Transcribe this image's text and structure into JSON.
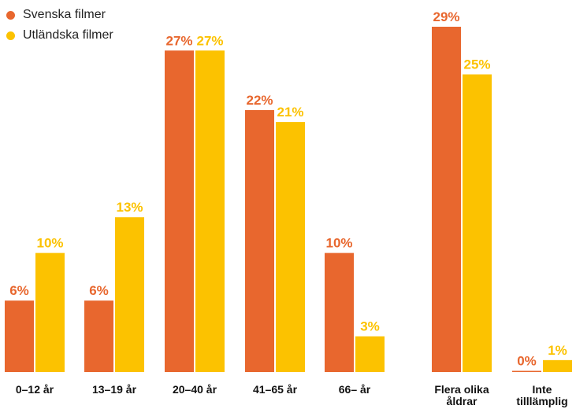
{
  "colors": {
    "svenska": "#E8672E",
    "utlandska": "#FCC200"
  },
  "legend": {
    "item0": "Svenska filmer",
    "item1": "Utländska filmer"
  },
  "chart_data": {
    "type": "bar",
    "categories": [
      [
        "0–12 år"
      ],
      [
        "13–19 år"
      ],
      [
        "20–40 år"
      ],
      [
        "41–65 år"
      ],
      [
        "66– år"
      ],
      [
        "Flera olika",
        "åldrar"
      ],
      [
        "Inte",
        "tilllämplig"
      ]
    ],
    "series": [
      {
        "name": "Svenska filmer",
        "values": [
          6,
          6,
          27,
          22,
          10,
          29,
          0
        ],
        "labels": [
          "6%",
          "6%",
          "27%",
          "22%",
          "10%",
          "29%",
          "0%"
        ]
      },
      {
        "name": "Utländska filmer",
        "values": [
          10,
          13,
          27,
          21,
          3,
          25,
          1
        ],
        "labels": [
          "10%",
          "13%",
          "27%",
          "21%",
          "3%",
          "25%",
          "1%"
        ]
      }
    ],
    "ylim": [
      0,
      29
    ],
    "grid": false,
    "legend_position": "top-left"
  }
}
